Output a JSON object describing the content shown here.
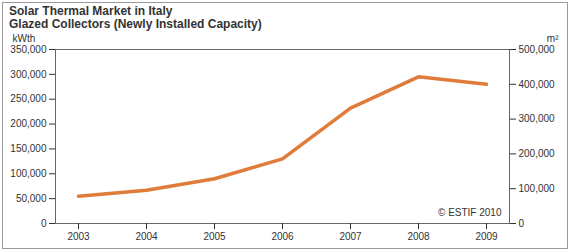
{
  "chart_data": {
    "type": "line",
    "title": "Solar Thermal Market in Italy",
    "subtitle": "Glazed Collectors (Newly Installed Capacity)",
    "y_label": "kWth",
    "y2_label": "m²",
    "annotation": "© ESTIF 2010",
    "categories": [
      "2003",
      "2004",
      "2005",
      "2006",
      "2007",
      "2008",
      "2009"
    ],
    "values": [
      55000,
      67000,
      90000,
      130000,
      232000,
      295000,
      280000
    ],
    "color": "#e07b39",
    "ylim": [
      0,
      350000
    ],
    "yticks": [
      0,
      {
        "value": 50000,
        "label": "50,000"
      },
      {
        "value": 100000,
        "label": "100,000"
      },
      {
        "value": 150000,
        "label": "150,000"
      },
      {
        "value": 200000,
        "label": "200,000"
      },
      {
        "value": 250000,
        "label": "250,000"
      },
      {
        "value": 300000,
        "label": "300,000"
      },
      {
        "value": 350000,
        "label": "350,000"
      }
    ],
    "y2lim": [
      0,
      500000
    ],
    "y2ticks": [
      0,
      {
        "value": 100000,
        "label": "100,000"
      },
      {
        "value": 200000,
        "label": "200,000"
      },
      {
        "value": 300000,
        "label": "300,000"
      },
      {
        "value": 400000,
        "label": "400,000"
      },
      {
        "value": 500000,
        "label": "500,000"
      }
    ],
    "grid": false
  }
}
